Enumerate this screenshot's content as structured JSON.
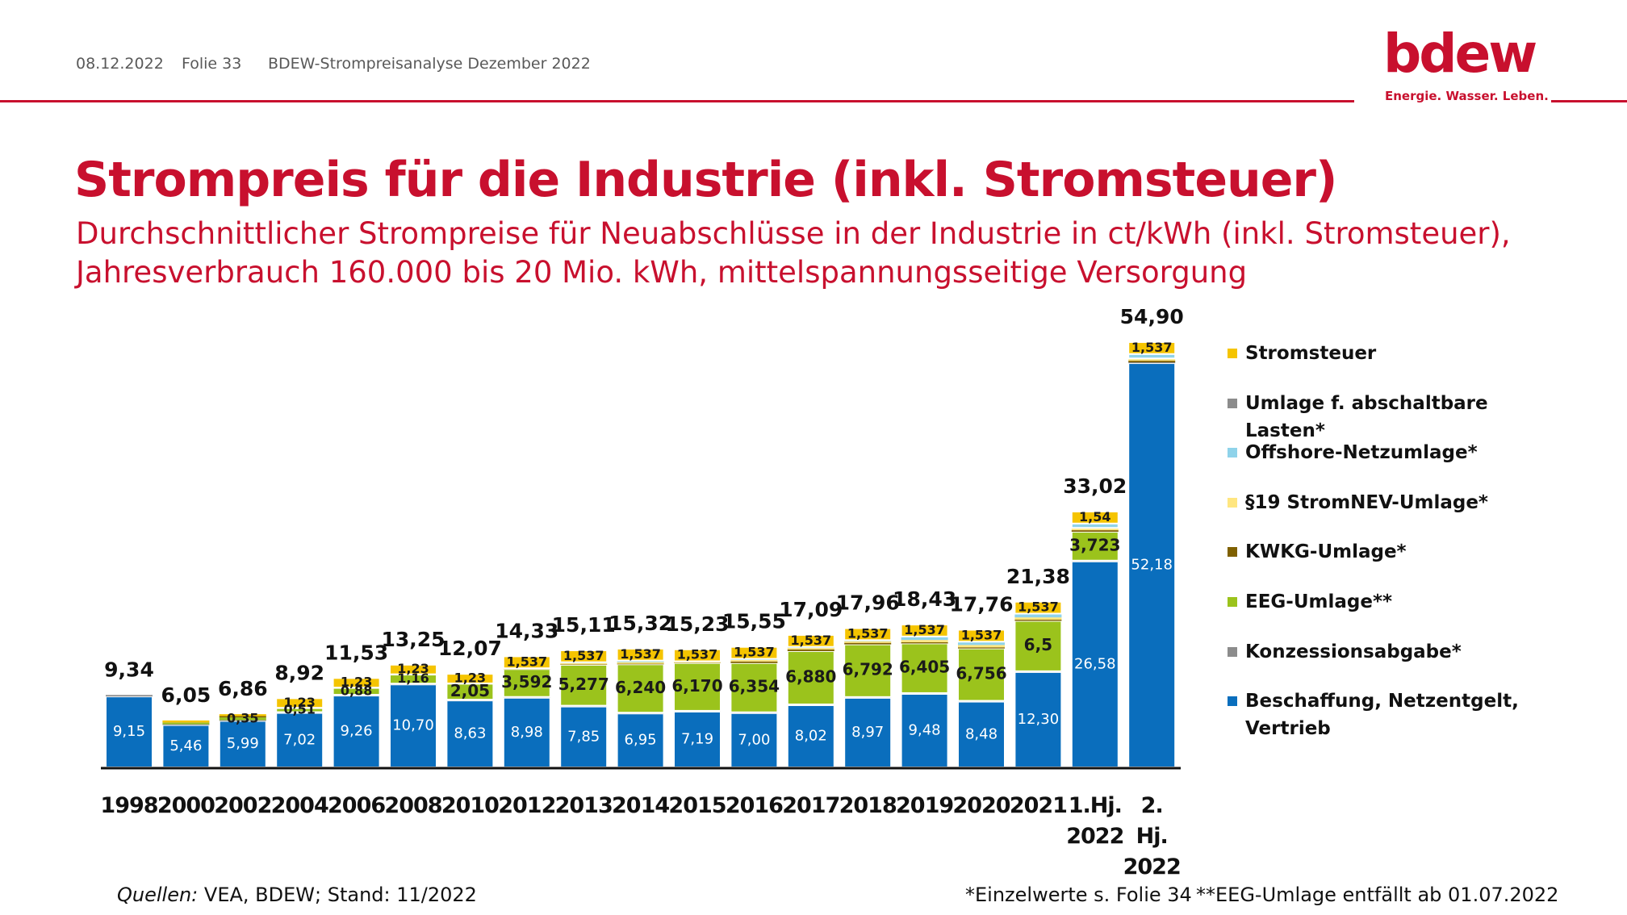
{
  "header": {
    "date": "08.12.2022",
    "slide": "Folie  33",
    "report": "BDEW-Strompreisanalyse Dezember 2022",
    "logo": "bdew",
    "tagline": "Energie. Wasser. Leben."
  },
  "chart_data": {
    "type": "stacked-bar",
    "title": "Strompreis für die Industrie (inkl. Stromsteuer)",
    "subtitle": [
      "Durchschnittlicher Strompreise für Neuabschlüsse in der Industrie in ct/kWh (inkl. Stromsteuer),",
      "Jahresverbrauch 160.000 bis 20 Mio. kWh, mittelspannungsseitige Versorgung"
    ],
    "categories": [
      "1998",
      "2000",
      "2002",
      "2004",
      "2006",
      "2008",
      "2010",
      "2012",
      "2013",
      "2014",
      "2015",
      "2016",
      "2017",
      "2018",
      "2019",
      "2020",
      "2021",
      "1.Hj. 2022",
      "2. Hj. 2022"
    ],
    "series": [
      {
        "name": "Beschaffung, Netzentgelt, Vertrieb",
        "color": "#0a6ebd",
        "label_color": "#ffffff",
        "values": [
          9.15,
          5.46,
          5.99,
          7.02,
          9.26,
          10.7,
          8.63,
          8.98,
          7.85,
          6.95,
          7.19,
          7.0,
          8.02,
          8.97,
          9.48,
          8.48,
          12.3,
          26.58,
          52.18
        ],
        "value_labels": [
          "9,15",
          "5,46",
          "5,99",
          "7,02",
          "9,26",
          "10,70",
          "8,63",
          "8,98",
          "7,85",
          "6,95",
          "7,19",
          "7,00",
          "8,02",
          "8,97",
          "9,48",
          "8,48",
          "12,30",
          "26,58",
          "52,18"
        ]
      },
      {
        "name": "Konzessionsabgabe*",
        "color": "#8c8c8c",
        "values": [
          0.19,
          0.11,
          0.11,
          0.11,
          0.11,
          0.11,
          0.11,
          0.11,
          0.11,
          0.11,
          0.11,
          0.11,
          0.11,
          0.11,
          0.11,
          0.11,
          0.11,
          0.11,
          0.11
        ]
      },
      {
        "name": "EEG-Umlage**",
        "color": "#9bc31c",
        "label_color": "#1a1a1a",
        "values": [
          null,
          0.2,
          0.35,
          0.51,
          0.88,
          1.16,
          2.05,
          3.592,
          5.277,
          6.24,
          6.17,
          6.354,
          6.88,
          6.792,
          6.405,
          6.756,
          6.5,
          3.723,
          null
        ],
        "value_labels": [
          null,
          null,
          "0,35",
          "0,51",
          "0,88",
          "1,16",
          "2,05",
          "3,592",
          "5,277",
          "6,240",
          "6,170",
          "6,354",
          "6,880",
          "6,792",
          "6,405",
          "6,756",
          "6,5",
          "3,723",
          null
        ]
      },
      {
        "name": "KWKG-Umlage*",
        "color": "#7f6000",
        "values": [
          null,
          0.02,
          0.16,
          0.05,
          0.05,
          0.05,
          0.05,
          0.04,
          0.06,
          0.08,
          0.05,
          0.2,
          0.2,
          0.2,
          0.15,
          0.15,
          0.15,
          0.2,
          0.2
        ]
      },
      {
        "name": "§19 StromNEV-Umlage*",
        "color": "#ffe680",
        "values": [
          null,
          null,
          null,
          null,
          null,
          null,
          null,
          0.071,
          0.15,
          0.2,
          0.09,
          0.2,
          0.2,
          0.2,
          0.3,
          0.3,
          0.3,
          0.3,
          0.3
        ]
      },
      {
        "name": "Offshore-Netzumlage*",
        "color": "#8fd3ea",
        "values": [
          null,
          null,
          null,
          null,
          null,
          null,
          null,
          null,
          0.116,
          0.203,
          0.073,
          0.1,
          0.14,
          0.14,
          0.443,
          0.416,
          0.474,
          0.567,
          0.573
        ]
      },
      {
        "name": "Umlage f. abschaltbare Lasten*",
        "color": "#8c8c8c",
        "values": [
          null,
          null,
          null,
          null,
          null,
          null,
          null,
          null,
          0.01,
          null,
          0.01,
          0.049,
          0.003,
          0.011,
          0.005,
          0.011,
          0.009,
          null,
          null
        ]
      },
      {
        "name": "Stromsteuer",
        "color": "#f5c400",
        "label_color": "#1a1a1a",
        "values": [
          null,
          0.26,
          0.25,
          1.23,
          1.23,
          1.23,
          1.23,
          1.537,
          1.537,
          1.537,
          1.537,
          1.537,
          1.537,
          1.537,
          1.537,
          1.537,
          1.537,
          1.54,
          1.537
        ],
        "value_labels": [
          null,
          null,
          null,
          "1,23",
          "1,23",
          "1,23",
          "1,23",
          "1,537",
          "1,537",
          "1,537",
          "1,537",
          "1,537",
          "1,537",
          "1,537",
          "1,537",
          "1,537",
          "1,537",
          "1,54",
          "1,537"
        ]
      }
    ],
    "totals": [
      9.34,
      6.05,
      6.86,
      8.92,
      11.53,
      13.25,
      12.07,
      14.33,
      15.11,
      15.32,
      15.23,
      15.55,
      17.09,
      17.96,
      18.43,
      17.76,
      21.38,
      33.02,
      54.9
    ],
    "total_labels": [
      "9,34",
      "6,05",
      "6,86",
      "8,92",
      "11,53",
      "13,25",
      "12,07",
      "14,33",
      "15,11",
      "15,32",
      "15,23",
      "15,55",
      "17,09",
      "17,96",
      "18,43",
      "17,76",
      "21,38",
      "33,02",
      "54,90"
    ],
    "legend": "right"
  },
  "footer": {
    "source_label": "Quellen:",
    "source": "VEA, BDEW; Stand: 11/2022",
    "note1": "*Einzelwerte s. Folie 34",
    "note2": "**EEG-Umlage entfällt ab 01.07.2022"
  }
}
